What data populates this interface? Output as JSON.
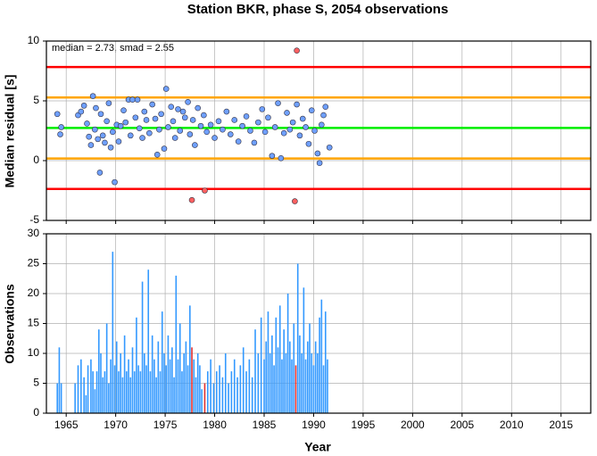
{
  "chart_data": [
    {
      "type": "scatter",
      "title": "Station BKR, phase S, 2054 observations",
      "y_label": "Median residual [s]",
      "annotation": "median = 2.73, smad = 2.55",
      "xlim": [
        1963,
        2018
      ],
      "xticks": [
        1965,
        1970,
        1975,
        1980,
        1985,
        1990,
        1995,
        2000,
        2005,
        2010,
        2015
      ],
      "ylim": [
        -5,
        10
      ],
      "yticks": [
        -5,
        0,
        5,
        10
      ],
      "grid": true,
      "reference_lines": [
        {
          "value": 7.83,
          "color": "#ff0000"
        },
        {
          "value": 5.28,
          "color": "#ffa500"
        },
        {
          "value": 2.73,
          "color": "#00ee00"
        },
        {
          "value": 0.18,
          "color": "#ffa500"
        },
        {
          "value": -2.37,
          "color": "#ff0000"
        }
      ],
      "series": [
        {
          "color": "#6fa0ff",
          "x": [
            1964.1,
            1964.4,
            1964.5,
            1966.2,
            1966.5,
            1966.8,
            1967.1,
            1967.3,
            1967.5,
            1967.7,
            1967.9,
            1968.0,
            1968.2,
            1968.4,
            1968.5,
            1968.7,
            1968.9,
            1969.1,
            1969.3,
            1969.5,
            1969.7,
            1969.9,
            1970.1,
            1970.3,
            1970.5,
            1970.8,
            1971.0,
            1971.3,
            1971.5,
            1971.7,
            1972.0,
            1972.2,
            1972.4,
            1972.7,
            1972.9,
            1973.1,
            1973.4,
            1973.7,
            1974.0,
            1974.2,
            1974.4,
            1974.6,
            1974.9,
            1975.1,
            1975.3,
            1975.6,
            1975.8,
            1976.0,
            1976.3,
            1976.5,
            1976.8,
            1977.0,
            1977.3,
            1977.5,
            1977.8,
            1978.0,
            1978.3,
            1978.6,
            1978.9,
            1979.2,
            1979.6,
            1980.0,
            1980.4,
            1980.8,
            1981.2,
            1981.6,
            1982.0,
            1982.4,
            1982.8,
            1983.2,
            1983.6,
            1984.0,
            1984.4,
            1984.8,
            1985.1,
            1985.4,
            1985.8,
            1986.1,
            1986.4,
            1986.7,
            1987.0,
            1987.3,
            1987.6,
            1987.9,
            1988.3,
            1988.6,
            1988.9,
            1989.2,
            1989.5,
            1989.8,
            1990.1,
            1990.4,
            1990.6,
            1990.8,
            1991.0,
            1991.2,
            1991.6
          ],
          "values": [
            3.9,
            2.2,
            2.8,
            3.8,
            4.1,
            4.6,
            3.1,
            2.0,
            1.3,
            5.4,
            2.6,
            4.4,
            1.8,
            -1.0,
            3.9,
            2.1,
            1.5,
            3.3,
            4.8,
            1.1,
            2.4,
            -1.8,
            3.0,
            1.6,
            2.9,
            4.2,
            3.2,
            5.1,
            2.1,
            5.1,
            3.6,
            5.1,
            2.7,
            1.9,
            4.1,
            3.4,
            2.3,
            4.7,
            3.5,
            0.5,
            2.6,
            3.9,
            1.0,
            6.0,
            2.8,
            4.5,
            3.3,
            1.9,
            4.3,
            2.5,
            4.1,
            3.6,
            4.9,
            2.2,
            3.4,
            1.3,
            4.4,
            2.9,
            3.8,
            2.4,
            3.0,
            1.9,
            3.3,
            2.6,
            4.1,
            2.2,
            3.4,
            1.6,
            2.9,
            3.7,
            2.5,
            1.5,
            3.2,
            4.3,
            2.4,
            3.6,
            0.4,
            2.8,
            4.8,
            0.2,
            2.3,
            4.0,
            2.6,
            3.2,
            4.7,
            2.1,
            3.5,
            2.8,
            1.4,
            4.2,
            2.5,
            0.6,
            -0.2,
            3.0,
            3.8,
            4.5,
            1.1
          ]
        },
        {
          "color": "#ff6060",
          "x": [
            1977.7,
            1979.0,
            1988.1,
            1988.3
          ],
          "values": [
            -3.3,
            -2.5,
            -3.4,
            9.2
          ]
        }
      ]
    },
    {
      "type": "bar",
      "y_label": "Observations",
      "x_label": "Year",
      "xlim": [
        1963,
        2018
      ],
      "xticks": [
        1965,
        1970,
        1975,
        1980,
        1985,
        1990,
        1995,
        2000,
        2005,
        2010,
        2015
      ],
      "ylim": [
        0,
        30
      ],
      "yticks": [
        0,
        5,
        10,
        15,
        20,
        25,
        30
      ],
      "grid": true,
      "series": [
        {
          "color": "#3399ff",
          "x": [
            1964.1,
            1964.3,
            1964.5,
            1965.9,
            1966.2,
            1966.5,
            1966.8,
            1967.0,
            1967.2,
            1967.5,
            1967.7,
            1967.9,
            1968.1,
            1968.3,
            1968.5,
            1968.7,
            1968.9,
            1969.1,
            1969.3,
            1969.5,
            1969.7,
            1969.9,
            1970.1,
            1970.3,
            1970.5,
            1970.7,
            1970.9,
            1971.1,
            1971.3,
            1971.5,
            1971.7,
            1971.9,
            1972.1,
            1972.3,
            1972.5,
            1972.7,
            1972.9,
            1973.1,
            1973.3,
            1973.5,
            1973.7,
            1973.9,
            1974.1,
            1974.3,
            1974.5,
            1974.7,
            1974.9,
            1975.1,
            1975.3,
            1975.5,
            1975.7,
            1975.9,
            1976.1,
            1976.3,
            1976.5,
            1976.7,
            1976.9,
            1977.1,
            1977.3,
            1977.5,
            1977.9,
            1978.1,
            1978.3,
            1978.5,
            1978.7,
            1979.3,
            1979.6,
            1979.9,
            1980.2,
            1980.5,
            1980.8,
            1981.1,
            1981.4,
            1981.7,
            1982.0,
            1982.3,
            1982.6,
            1982.9,
            1983.2,
            1983.5,
            1983.8,
            1984.1,
            1984.4,
            1984.7,
            1985.0,
            1985.2,
            1985.4,
            1985.6,
            1985.8,
            1986.0,
            1986.2,
            1986.4,
            1986.6,
            1986.8,
            1987.0,
            1987.2,
            1987.4,
            1987.6,
            1987.8,
            1988.0,
            1988.4,
            1988.6,
            1988.8,
            1989.0,
            1989.2,
            1989.4,
            1989.6,
            1989.8,
            1990.0,
            1990.2,
            1990.4,
            1990.6,
            1990.8,
            1991.0,
            1991.2,
            1991.4
          ],
          "values": [
            5,
            11,
            5,
            5,
            8,
            9,
            6,
            3,
            8,
            9,
            7,
            4,
            7,
            14,
            10,
            6,
            7,
            15,
            5,
            9,
            27,
            8,
            12,
            7,
            10,
            6,
            13,
            7,
            9,
            6,
            11,
            7,
            16,
            8,
            7,
            22,
            10,
            8,
            24,
            7,
            13,
            9,
            6,
            12,
            7,
            17,
            10,
            8,
            13,
            9,
            11,
            6,
            23,
            9,
            15,
            7,
            10,
            12,
            8,
            18,
            9,
            6,
            10,
            8,
            4,
            7,
            9,
            5,
            7,
            8,
            6,
            10,
            5,
            7,
            9,
            6,
            8,
            11,
            7,
            9,
            6,
            14,
            10,
            16,
            9,
            12,
            17,
            10,
            13,
            8,
            16,
            11,
            18,
            9,
            14,
            10,
            20,
            12,
            9,
            15,
            25,
            13,
            10,
            21,
            9,
            12,
            15,
            10,
            8,
            12,
            10,
            16,
            19,
            8,
            17,
            9
          ]
        },
        {
          "color": "#e03030",
          "x": [
            1977.7,
            1979.0,
            1988.2
          ],
          "values": [
            11,
            5,
            8
          ]
        }
      ]
    }
  ]
}
